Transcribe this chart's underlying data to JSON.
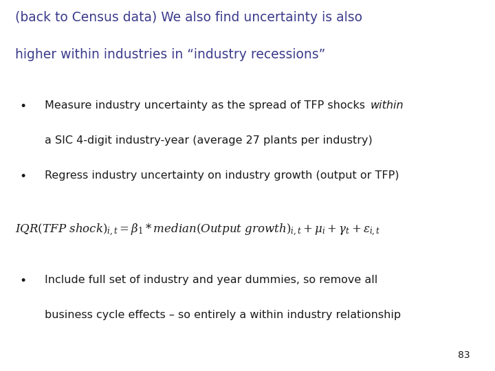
{
  "title_line1": "(back to Census data) We also find uncertainty is also",
  "title_line2": "higher within industries in “industry recessions”",
  "title_color": "#3B3B8C",
  "bullet_color": "#1a1a1a",
  "bg_color": "#FFFFFF",
  "bullet1_normal": "Measure industry uncertainty as the spread of TFP shocks ",
  "bullet1_italic": "within",
  "bullet1_line2": "a SIC 4-digit industry-year (average 27 plants per industry)",
  "bullet2": "Regress industry uncertainty on industry growth (output or TFP)",
  "bullet3_line1": "Include full set of industry and year dummies, so remove all",
  "bullet3_line2": "business cycle effects – so entirely a within industry relationship",
  "equation": "$\\mathit{IQR(TFP\\ shock)_{i,t} = \\beta_1 * median(Output\\ growth)_{i,t} + \\mu_i + \\gamma_t + \\epsilon_{i,t}}$",
  "page_number": "83",
  "title_fontsize": 13.5,
  "body_fontsize": 11.5,
  "eq_fontsize": 12,
  "page_fontsize": 10
}
